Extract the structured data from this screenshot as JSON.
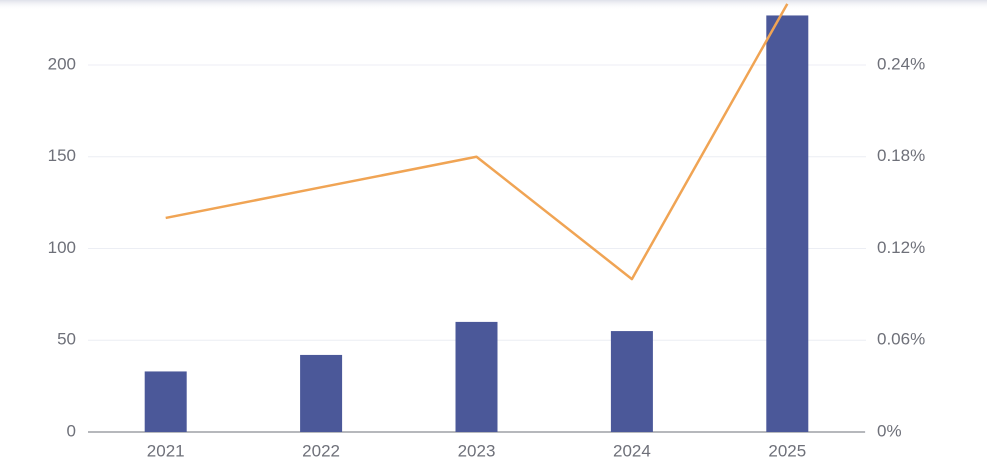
{
  "chart_data": {
    "type": "bar-line",
    "categories": [
      "2021",
      "2022",
      "2023",
      "2024",
      "2025"
    ],
    "series": [
      {
        "type": "bar",
        "color": "#4b5899",
        "values": [
          33,
          42,
          60,
          55,
          227
        ]
      },
      {
        "type": "line",
        "axis": "y2",
        "color": "#f0a454",
        "values": [
          0.14,
          0.16,
          0.18,
          0.1,
          0.28
        ]
      }
    ],
    "ylim": [
      0,
      250
    ],
    "yticks": [
      0,
      50,
      100,
      150,
      200
    ],
    "y2lim": [
      0,
      0.3
    ],
    "y2ticks": [
      {
        "value": 0,
        "label": "0%"
      },
      {
        "value": 0.06,
        "label": "0.06%"
      },
      {
        "value": 0.12,
        "label": "0.12%"
      },
      {
        "value": 0.18,
        "label": "0.18%"
      },
      {
        "value": 0.24,
        "label": "0.24%"
      }
    ],
    "grid": true
  }
}
